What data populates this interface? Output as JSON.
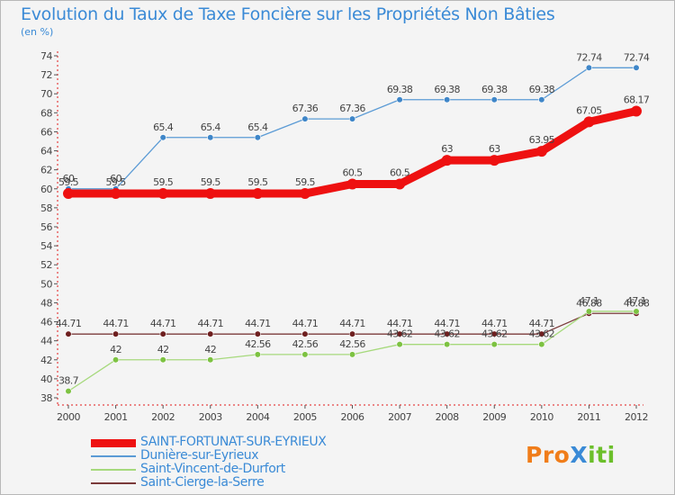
{
  "title": "Evolution du Taux de Taxe Foncière sur les Propriétés Non Bâties",
  "subtitle": "(en %)",
  "brand": {
    "text": "ProXiti",
    "letters": [
      {
        "ch": "P",
        "color": "#f07d1a"
      },
      {
        "ch": "r",
        "color": "#f07d1a"
      },
      {
        "ch": "o",
        "color": "#f07d1a"
      },
      {
        "ch": "X",
        "color": "#3a8ad6"
      },
      {
        "ch": "i",
        "color": "#6bbf2a"
      },
      {
        "ch": "t",
        "color": "#6bbf2a"
      },
      {
        "ch": "i",
        "color": "#6bbf2a"
      }
    ]
  },
  "chart_data": {
    "type": "line",
    "title": "Evolution du Taux de Taxe Foncière sur les Propriétés Non Bâties",
    "subtitle": "(en %)",
    "xlabel": "",
    "ylabel": "",
    "x": [
      "2000",
      "2001",
      "2002",
      "2003",
      "2004",
      "2005",
      "2006",
      "2007",
      "2008",
      "2009",
      "2010",
      "2011",
      "2012"
    ],
    "ylim": [
      38,
      74
    ],
    "yticks": [
      38,
      40,
      42,
      44,
      46,
      48,
      50,
      52,
      54,
      56,
      58,
      60,
      62,
      64,
      66,
      68,
      70,
      72,
      74
    ],
    "grid": false,
    "legend_position": "bottom",
    "series": [
      {
        "name": "Dunière-sur-Eyrieux",
        "color": "#5b9bd5",
        "line_style": "thin",
        "marker_color": "#3f86c8",
        "values": [
          60,
          60,
          65.4,
          65.4,
          65.4,
          67.36,
          67.36,
          69.38,
          69.38,
          69.38,
          69.38,
          72.74,
          72.74
        ],
        "labels": [
          "60",
          "60",
          "65.4",
          "65.4",
          "65.4",
          "67.36",
          "67.36",
          "69.38",
          "69.38",
          "69.38",
          "69.38",
          "72.74",
          "72.74"
        ]
      },
      {
        "name": "Saint-Cierge-la-Serre",
        "color": "#7b3b3b",
        "line_style": "thin",
        "marker_color": "#6e1f1f",
        "values": [
          44.71,
          44.71,
          44.71,
          44.71,
          44.71,
          44.71,
          44.71,
          44.71,
          44.71,
          44.71,
          44.71,
          46.88,
          46.88
        ],
        "labels": [
          "44.71",
          "44.71",
          "44.71",
          "44.71",
          "44.71",
          "44.71",
          "44.71",
          "44.71",
          "44.71",
          "44.71",
          "44.71",
          "46.88",
          "46.88"
        ]
      },
      {
        "name": "Saint-Vincent-de-Durfort",
        "color": "#a6d97c",
        "line_style": "thin",
        "marker_color": "#7dc242",
        "values": [
          38.7,
          42,
          42,
          42,
          42.56,
          42.56,
          42.56,
          43.62,
          43.62,
          43.62,
          43.62,
          47.1,
          47.1
        ],
        "labels": [
          "38.7",
          "42",
          "42",
          "42",
          "42.56",
          "42.56",
          "42.56",
          "43.62",
          "43.62",
          "43.62",
          "43.62",
          "47.1",
          "47.1"
        ]
      },
      {
        "name": "SAINT-FORTUNAT-SUR-EYRIEUX",
        "color": "#ee1111",
        "line_style": "thick",
        "marker_color": "#ee1111",
        "values": [
          59.5,
          59.5,
          59.5,
          59.5,
          59.5,
          59.5,
          60.5,
          60.5,
          63,
          63,
          63.95,
          67.05,
          68.17
        ],
        "labels": [
          "59.5",
          "59.5",
          "59.5",
          "59.5",
          "59.5",
          "59.5",
          "60.5",
          "60.5",
          "63",
          "63",
          "63.95",
          "67.05",
          "68.17"
        ]
      }
    ],
    "legend_order": [
      "SAINT-FORTUNAT-SUR-EYRIEUX",
      "Dunière-sur-Eyrieux",
      "Saint-Vincent-de-Durfort",
      "Saint-Cierge-la-Serre"
    ]
  }
}
